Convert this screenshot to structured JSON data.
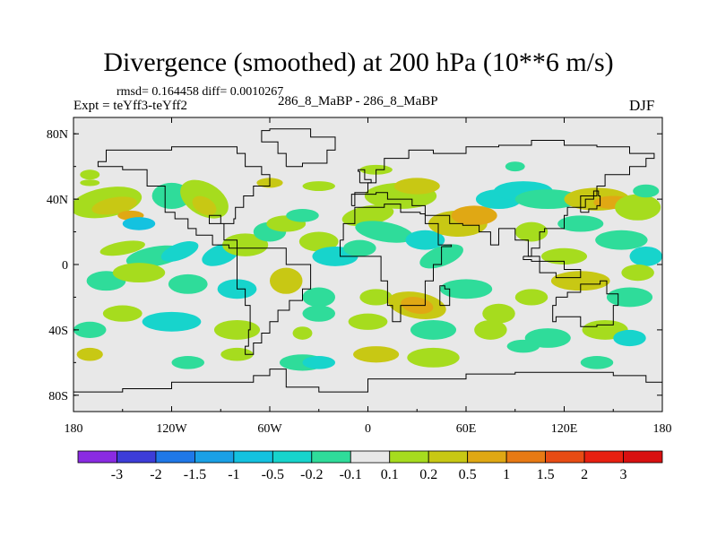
{
  "chart_data": {
    "type": "heatmap",
    "title": "Divergence (smoothed) at 200 hPa (10**6 m/s)",
    "stats": "rmsd= 0.164458 diff= 0.0010267",
    "experiment": "Expt = teYff3-teYff2",
    "run_label": "286_8_MaBP - 286_8_MaBP",
    "season": "DJF",
    "x_ticks": [
      "180",
      "120W",
      "60W",
      "0",
      "60E",
      "120E",
      "180"
    ],
    "x_tick_values": [
      -180,
      -120,
      -60,
      0,
      60,
      120,
      180
    ],
    "y_ticks": [
      "80N",
      "40N",
      "0",
      "40S",
      "80S"
    ],
    "y_tick_values": [
      80,
      40,
      0,
      -40,
      -80
    ],
    "xlim": [
      -180,
      180
    ],
    "ylim": [
      -90,
      90
    ],
    "colorbar_labels": [
      "-3",
      "-2",
      "-1.5",
      "-1",
      "-0.5",
      "-0.2",
      "-0.1",
      "0.1",
      "0.2",
      "0.5",
      "1",
      "1.5",
      "2",
      "3"
    ],
    "colorbar_colors": [
      "#8a2be2",
      "#3d3dd8",
      "#1f78e8",
      "#1aa0e6",
      "#14c2e0",
      "#17d4cc",
      "#2fdc9a",
      "#e8e8e8",
      "#a6dc1e",
      "#c8c814",
      "#e0a814",
      "#e87a14",
      "#e84c14",
      "#e82010",
      "#d81010"
    ],
    "background_value_color": "#e8e8e8"
  }
}
